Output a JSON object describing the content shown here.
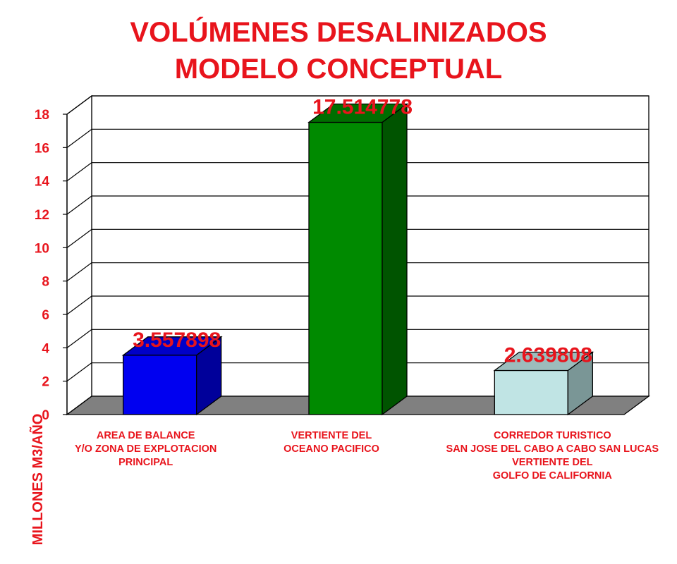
{
  "title_line1": "VOLÚMENES DESALINIZADOS",
  "title_line2": "MODELO CONCEPTUAL",
  "chart_data": {
    "type": "bar",
    "title": "VOLÚMENES DESALINIZADOS MODELO CONCEPTUAL",
    "ylabel": "MILLONES M3/AÑO",
    "xlabel": "",
    "ylim": [
      0,
      18
    ],
    "yticks": [
      "0",
      "2",
      "4",
      "6",
      "8",
      "10",
      "12",
      "14",
      "16",
      "18"
    ],
    "grid": true,
    "categories": [
      [
        "AREA DE BALANCE",
        "Y/O ZONA DE EXPLOTACION",
        "PRINCIPAL"
      ],
      [
        "VERTIENTE DEL",
        "OCEANO PACIFICO"
      ],
      [
        "CORREDOR TURISTICO",
        "SAN JOSE DEL CABO A CABO SAN LUCAS",
        "VERTIENTE DEL",
        "GOLFO DE CALIFORNIA"
      ]
    ],
    "values": [
      3.557898,
      17.514778,
      2.639808
    ],
    "value_labels": [
      "3.557898",
      "17.514778",
      "2.639808"
    ],
    "colors": [
      {
        "front": "#0000f0",
        "side": "#00009a",
        "top": "#0000c8"
      },
      {
        "front": "#008a00",
        "side": "#005400",
        "top": "#006e00"
      },
      {
        "front": "#c0e4e4",
        "side": "#7a9696",
        "top": "#9cbcbc"
      }
    ],
    "label_color": "#e8141c"
  }
}
